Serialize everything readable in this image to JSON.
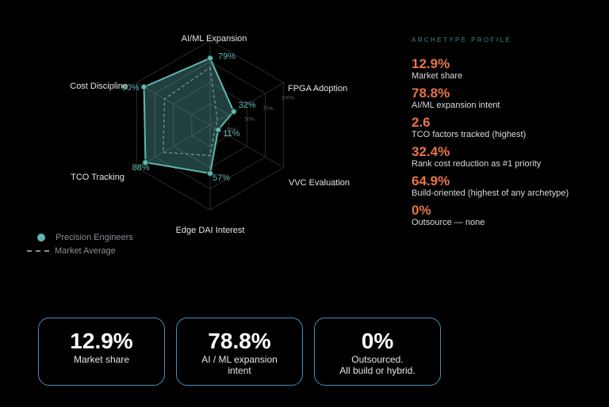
{
  "chart_data": {
    "type": "radar",
    "axes": [
      "AI/ML Expansion",
      "FPGA Adoption",
      "VVC Evaluation",
      "Edge DAI Interest",
      "TCO Tracking",
      "Cost Discipline"
    ],
    "radial_ticks": [
      "25%",
      "50%",
      "75%",
      "100%"
    ],
    "rmax": 100,
    "series": [
      {
        "name": "Precision Engineers",
        "values": [
          79,
          32,
          11,
          57,
          88,
          90
        ],
        "labels": [
          "79%",
          "32%",
          "11%",
          "57%",
          "88%",
          "90%"
        ],
        "color": "#5fb8b0"
      },
      {
        "name": "Market Average",
        "values": [
          68,
          10,
          7,
          36,
          64,
          62
        ],
        "color": "#9aa0a6"
      }
    ],
    "legend_placement": "bottom-left"
  },
  "profile": {
    "heading": "ARCHETYPE PROFILE",
    "stats": [
      {
        "value": "12.9%",
        "label": "Market share"
      },
      {
        "value": "78.8%",
        "label": "AI/ML expansion intent"
      },
      {
        "value": "2.6",
        "label": "TCO factors tracked (highest)"
      },
      {
        "value": "32.4%",
        "label": "Rank cost reduction as #1 priority"
      },
      {
        "value": "64.9%",
        "label": "Build-oriented (highest of any archetype)"
      },
      {
        "value": "0%",
        "label": "Outsource — none"
      }
    ]
  },
  "cards": [
    {
      "value": "12.9%",
      "label": "Market share"
    },
    {
      "value": "78.8%",
      "label": "AI / ML expansion\nintent"
    },
    {
      "value": "0%",
      "label": "Outsourced.\nAll build or hybrid."
    }
  ],
  "colors": {
    "accent": "#e8734a",
    "series": "#5fb8b0",
    "card_border": "#4b8db5"
  }
}
